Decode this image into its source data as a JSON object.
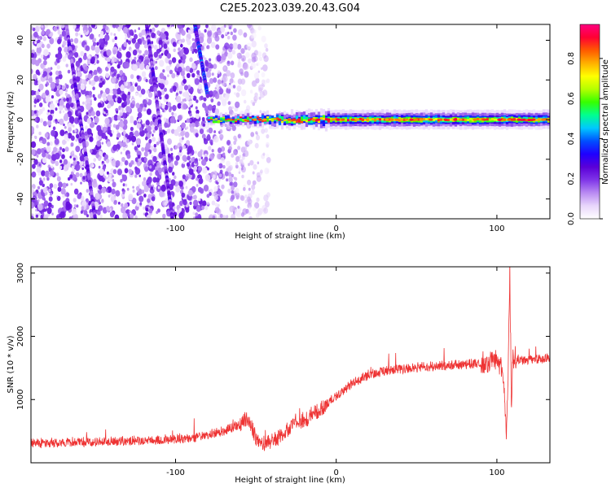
{
  "figure": {
    "title": "C2E5.2023.039.20.43.G04"
  },
  "chart_data": [
    {
      "type": "heatmap",
      "title": "",
      "xlabel": "Height of straight line (km)",
      "ylabel": "Frequency (Hz)",
      "xlim": [
        -190,
        133
      ],
      "ylim": [
        -50,
        48
      ],
      "xticks": [
        -100,
        0,
        100
      ],
      "yticks": [
        -40,
        -20,
        0,
        20,
        40
      ],
      "colorbar": {
        "label": "Normalized spectral amplitude",
        "range": [
          0,
          0.97
        ],
        "ticks": [
          0.0,
          0.2,
          0.4,
          0.6,
          0.8
        ],
        "colormap": [
          "#ffffff",
          "#e8d6fb",
          "#b98af2",
          "#7f35e8",
          "#5a00d8",
          "#1f00ff",
          "#0050ff",
          "#00c8ff",
          "#00ff90",
          "#36ff00",
          "#b4ff00",
          "#ffff00",
          "#ffb000",
          "#ff5a00",
          "#ff0033",
          "#ff0080"
        ]
      },
      "features": [
        {
          "name": "broadband noise",
          "x_range": [
            -190,
            -42
          ],
          "level": 0.12
        },
        {
          "name": "dispersive streak",
          "x_start": -168,
          "x_end": -150,
          "y_start": 48,
          "y_end": -50,
          "level": 0.2
        },
        {
          "name": "dispersive streak",
          "x_start": -118,
          "x_end": -102,
          "y_start": 48,
          "y_end": -50,
          "level": 0.2
        },
        {
          "name": "dispersive streak",
          "x_start": -88,
          "x_end": -80,
          "y_start": 48,
          "y_end": 12,
          "level": 0.3
        },
        {
          "name": "carrier band",
          "x_range": [
            -80,
            133
          ],
          "frequency": 0,
          "level": 0.95
        }
      ]
    },
    {
      "type": "line",
      "title": "",
      "xlabel": "Height of straight line (km)",
      "ylabel": "SNR (10 * v/v)",
      "xlim": [
        -190,
        133
      ],
      "ylim": [
        0,
        3100
      ],
      "xticks": [
        -100,
        0,
        100
      ],
      "yticks": [
        1000,
        2000,
        3000
      ],
      "series": [
        {
          "color": "#ee3333",
          "x": [
            -190,
            -170,
            -150,
            -130,
            -110,
            -90,
            -80,
            -70,
            -60,
            -55,
            -50,
            -45,
            -40,
            -35,
            -30,
            -25,
            -20,
            -15,
            -10,
            -5,
            0,
            10,
            20,
            30,
            40,
            50,
            60,
            70,
            80,
            90,
            95,
            100,
            103,
            105,
            106,
            107,
            108,
            109,
            110,
            115,
            120,
            133
          ],
          "y": [
            300,
            320,
            330,
            340,
            360,
            390,
            430,
            500,
            600,
            700,
            380,
            300,
            330,
            400,
            520,
            650,
            640,
            760,
            820,
            950,
            1050,
            1250,
            1380,
            1450,
            1480,
            1500,
            1520,
            1540,
            1550,
            1570,
            1580,
            1600,
            1500,
            900,
            400,
            1400,
            3000,
            900,
            1650,
            1620,
            1630,
            1650
          ],
          "noise_amplitude": 160
        }
      ]
    }
  ]
}
